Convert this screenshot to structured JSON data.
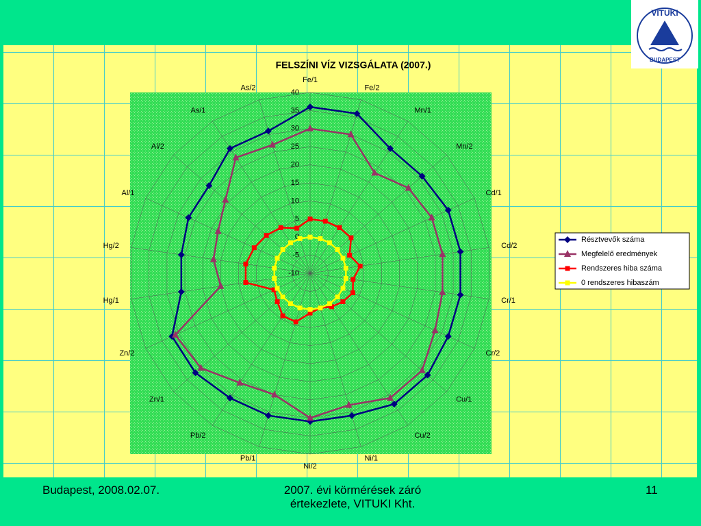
{
  "chart_data": {
    "type": "radar",
    "title": "FELSZÍNI VÍZ VIZSGÁLATA (2007.)",
    "categories": [
      "Fe/1",
      "Fe/2",
      "Mn/1",
      "Mn/2",
      "Cd/1",
      "Cd/2",
      "Cr/1",
      "Cr/2",
      "Cu/1",
      "Cu/2",
      "Ni/1",
      "Ni/2",
      "Pb/1",
      "Pb/2",
      "Zn/1",
      "Zn/2",
      "Hg/1",
      "Hg/2",
      "Al/1",
      "Al/2",
      "As/1",
      "As/2"
    ],
    "series": [
      {
        "name": "Résztvevők száma",
        "color": "#000080",
        "marker": "diamond",
        "values": [
          36,
          36,
          31,
          31,
          32,
          32,
          32,
          32,
          33,
          33,
          31,
          31,
          31,
          31,
          32,
          32,
          26,
          26,
          27,
          27,
          31,
          31
        ]
      },
      {
        "name": "Megfelelő eredmények",
        "color": "#993366",
        "marker": "triangle",
        "values": [
          30,
          30,
          23,
          26,
          27,
          27,
          27,
          28,
          31,
          31,
          28,
          30,
          25,
          26,
          30,
          31,
          15,
          17,
          18,
          21,
          28,
          27
        ]
      },
      {
        "name": "Rendszeres hiba száma",
        "color": "#ff0000",
        "marker": "square",
        "values": [
          5,
          5,
          5,
          5,
          2,
          4,
          2,
          3,
          2,
          1,
          0,
          1,
          4,
          4,
          2,
          1,
          8,
          8,
          7,
          6,
          5,
          3
        ]
      },
      {
        "name": "0 rendszeres hibaszám",
        "color": "#ffff00",
        "marker": "square",
        "values": [
          0,
          0,
          0,
          0,
          0,
          0,
          0,
          0,
          0,
          0,
          0,
          0,
          0,
          0,
          0,
          0,
          0,
          0,
          0,
          0,
          0,
          0
        ]
      }
    ],
    "ylim": [
      -10,
      40
    ],
    "yticks": [
      -10,
      -5,
      0,
      5,
      10,
      15,
      20,
      25,
      30,
      35,
      40
    ],
    "grid": true,
    "legend": "right"
  },
  "logo": {
    "top": "VITUKI",
    "bottom": "BUDAPEST"
  },
  "footer": {
    "left": "Budapest, 2008.02.07.",
    "center": "2007. évi körmérések záró értekezlete, VITUKI Kht.",
    "right": "11"
  }
}
